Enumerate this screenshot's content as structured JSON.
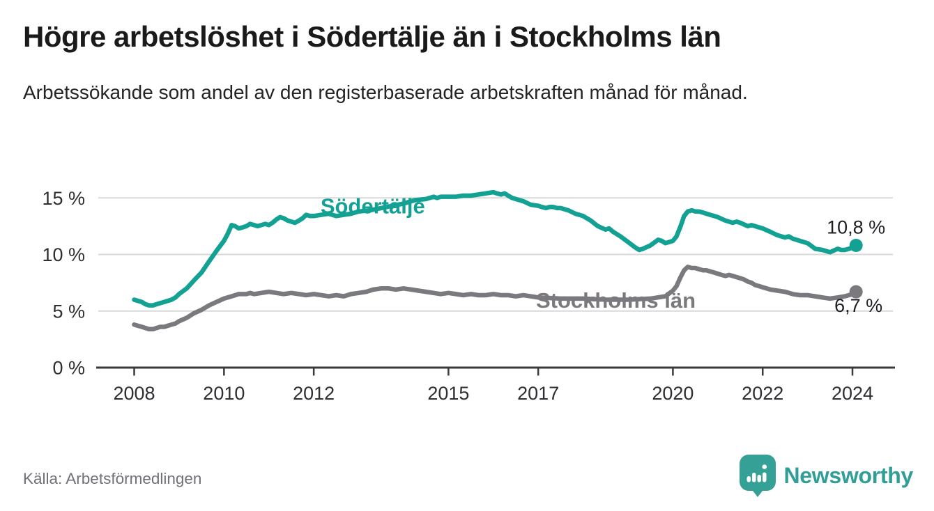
{
  "header": {
    "title": "Högre arbetslöshet i Södertälje än i Stockholms län",
    "subtitle": "Arbetssökande som andel av den registerbaserade arbetskraften månad för månad."
  },
  "chart_data": {
    "type": "line",
    "title": "Högre arbetslöshet i Södertälje än i Stockholms län",
    "subtitle": "Arbetssökande som andel av den registerbaserade arbetskraften månad för månad.",
    "x_axis": {
      "ticks": [
        2008,
        2010,
        2012,
        2015,
        2017,
        2020,
        2022,
        2024
      ],
      "range": [
        2008,
        2024.2
      ],
      "unit": "year"
    },
    "y_axis": {
      "ticks": [
        0,
        5,
        10,
        15
      ],
      "tick_suffix": " %",
      "range": [
        0,
        16
      ],
      "gridlines": [
        5,
        10,
        15
      ],
      "grid_color": "#d9d9d9",
      "axis_color": "#3a3a3a"
    },
    "legend_position": "inline-labels",
    "series": [
      {
        "name": "Södertälje",
        "color": "#12a192",
        "end_label": "10,8 %",
        "end_value": 10.8,
        "label_at": {
          "year": 2012.15,
          "value": 13.62
        },
        "points": [
          [
            2008.0,
            6.0
          ],
          [
            2008.08,
            5.9
          ],
          [
            2008.17,
            5.8
          ],
          [
            2008.25,
            5.6
          ],
          [
            2008.33,
            5.5
          ],
          [
            2008.42,
            5.5
          ],
          [
            2008.5,
            5.6
          ],
          [
            2008.58,
            5.7
          ],
          [
            2008.67,
            5.8
          ],
          [
            2008.75,
            5.9
          ],
          [
            2008.83,
            6.0
          ],
          [
            2008.92,
            6.2
          ],
          [
            2009.0,
            6.5
          ],
          [
            2009.17,
            7.0
          ],
          [
            2009.33,
            7.7
          ],
          [
            2009.5,
            8.4
          ],
          [
            2009.67,
            9.4
          ],
          [
            2009.83,
            10.3
          ],
          [
            2010.0,
            11.2
          ],
          [
            2010.08,
            11.8
          ],
          [
            2010.17,
            12.6
          ],
          [
            2010.25,
            12.5
          ],
          [
            2010.33,
            12.3
          ],
          [
            2010.42,
            12.4
          ],
          [
            2010.5,
            12.5
          ],
          [
            2010.58,
            12.7
          ],
          [
            2010.67,
            12.6
          ],
          [
            2010.75,
            12.5
          ],
          [
            2010.83,
            12.6
          ],
          [
            2010.92,
            12.7
          ],
          [
            2011.0,
            12.6
          ],
          [
            2011.08,
            12.8
          ],
          [
            2011.17,
            13.1
          ],
          [
            2011.25,
            13.3
          ],
          [
            2011.33,
            13.2
          ],
          [
            2011.42,
            13.0
          ],
          [
            2011.5,
            12.9
          ],
          [
            2011.58,
            12.8
          ],
          [
            2011.67,
            13.0
          ],
          [
            2011.75,
            13.2
          ],
          [
            2011.83,
            13.5
          ],
          [
            2011.92,
            13.4
          ],
          [
            2012.0,
            13.4
          ],
          [
            2012.17,
            13.5
          ],
          [
            2012.33,
            13.6
          ],
          [
            2012.5,
            13.4
          ],
          [
            2012.67,
            13.5
          ],
          [
            2012.83,
            13.6
          ],
          [
            2013.0,
            13.8
          ],
          [
            2013.25,
            13.9
          ],
          [
            2013.5,
            14.1
          ],
          [
            2013.75,
            14.3
          ],
          [
            2014.0,
            14.5
          ],
          [
            2014.25,
            14.8
          ],
          [
            2014.5,
            14.9
          ],
          [
            2014.58,
            15.0
          ],
          [
            2014.67,
            15.1
          ],
          [
            2014.75,
            15.0
          ],
          [
            2014.83,
            15.1
          ],
          [
            2014.92,
            15.1
          ],
          [
            2015.0,
            15.1
          ],
          [
            2015.17,
            15.1
          ],
          [
            2015.33,
            15.2
          ],
          [
            2015.5,
            15.2
          ],
          [
            2015.67,
            15.3
          ],
          [
            2015.83,
            15.4
          ],
          [
            2016.0,
            15.5
          ],
          [
            2016.08,
            15.4
          ],
          [
            2016.17,
            15.3
          ],
          [
            2016.25,
            15.4
          ],
          [
            2016.33,
            15.2
          ],
          [
            2016.42,
            15.0
          ],
          [
            2016.5,
            14.9
          ],
          [
            2016.67,
            14.7
          ],
          [
            2016.83,
            14.4
          ],
          [
            2017.0,
            14.3
          ],
          [
            2017.08,
            14.2
          ],
          [
            2017.17,
            14.1
          ],
          [
            2017.25,
            14.2
          ],
          [
            2017.33,
            14.2
          ],
          [
            2017.42,
            14.1
          ],
          [
            2017.5,
            14.1
          ],
          [
            2017.67,
            13.9
          ],
          [
            2017.83,
            13.6
          ],
          [
            2018.0,
            13.4
          ],
          [
            2018.17,
            13.0
          ],
          [
            2018.33,
            12.5
          ],
          [
            2018.5,
            12.2
          ],
          [
            2018.58,
            12.3
          ],
          [
            2018.67,
            12.0
          ],
          [
            2018.83,
            11.6
          ],
          [
            2019.0,
            11.1
          ],
          [
            2019.17,
            10.6
          ],
          [
            2019.25,
            10.4
          ],
          [
            2019.33,
            10.5
          ],
          [
            2019.5,
            10.8
          ],
          [
            2019.67,
            11.3
          ],
          [
            2019.75,
            11.2
          ],
          [
            2019.83,
            11.0
          ],
          [
            2019.92,
            11.1
          ],
          [
            2020.0,
            11.2
          ],
          [
            2020.08,
            11.6
          ],
          [
            2020.17,
            12.5
          ],
          [
            2020.25,
            13.4
          ],
          [
            2020.33,
            13.8
          ],
          [
            2020.42,
            13.9
          ],
          [
            2020.5,
            13.8
          ],
          [
            2020.58,
            13.8
          ],
          [
            2020.67,
            13.7
          ],
          [
            2020.75,
            13.6
          ],
          [
            2020.83,
            13.5
          ],
          [
            2020.92,
            13.4
          ],
          [
            2021.0,
            13.3
          ],
          [
            2021.17,
            13.0
          ],
          [
            2021.33,
            12.8
          ],
          [
            2021.42,
            12.9
          ],
          [
            2021.5,
            12.8
          ],
          [
            2021.67,
            12.5
          ],
          [
            2021.75,
            12.6
          ],
          [
            2021.83,
            12.5
          ],
          [
            2022.0,
            12.3
          ],
          [
            2022.17,
            12.0
          ],
          [
            2022.33,
            11.7
          ],
          [
            2022.5,
            11.5
          ],
          [
            2022.58,
            11.6
          ],
          [
            2022.67,
            11.4
          ],
          [
            2022.83,
            11.2
          ],
          [
            2023.0,
            11.0
          ],
          [
            2023.17,
            10.5
          ],
          [
            2023.33,
            10.4
          ],
          [
            2023.5,
            10.2
          ],
          [
            2023.67,
            10.5
          ],
          [
            2023.75,
            10.4
          ],
          [
            2023.83,
            10.4
          ],
          [
            2023.92,
            10.5
          ],
          [
            2024.0,
            10.6
          ],
          [
            2024.08,
            10.8
          ]
        ]
      },
      {
        "name": "Stockholms län",
        "color": "#7b797e",
        "end_label": "6,7 %",
        "end_value": 6.7,
        "label_at": {
          "year": 2016.95,
          "value": 5.3
        },
        "points": [
          [
            2008.0,
            3.8
          ],
          [
            2008.08,
            3.7
          ],
          [
            2008.17,
            3.6
          ],
          [
            2008.25,
            3.5
          ],
          [
            2008.33,
            3.4
          ],
          [
            2008.42,
            3.4
          ],
          [
            2008.5,
            3.5
          ],
          [
            2008.58,
            3.6
          ],
          [
            2008.67,
            3.6
          ],
          [
            2008.75,
            3.7
          ],
          [
            2008.83,
            3.8
          ],
          [
            2008.92,
            3.9
          ],
          [
            2009.0,
            4.1
          ],
          [
            2009.17,
            4.4
          ],
          [
            2009.33,
            4.8
          ],
          [
            2009.5,
            5.1
          ],
          [
            2009.67,
            5.5
          ],
          [
            2009.83,
            5.8
          ],
          [
            2010.0,
            6.1
          ],
          [
            2010.17,
            6.3
          ],
          [
            2010.33,
            6.5
          ],
          [
            2010.5,
            6.5
          ],
          [
            2010.58,
            6.6
          ],
          [
            2010.67,
            6.5
          ],
          [
            2010.83,
            6.6
          ],
          [
            2011.0,
            6.7
          ],
          [
            2011.17,
            6.6
          ],
          [
            2011.33,
            6.5
          ],
          [
            2011.5,
            6.6
          ],
          [
            2011.67,
            6.5
          ],
          [
            2011.83,
            6.4
          ],
          [
            2012.0,
            6.5
          ],
          [
            2012.17,
            6.4
          ],
          [
            2012.33,
            6.3
          ],
          [
            2012.5,
            6.4
          ],
          [
            2012.67,
            6.3
          ],
          [
            2012.83,
            6.5
          ],
          [
            2013.0,
            6.6
          ],
          [
            2013.17,
            6.7
          ],
          [
            2013.33,
            6.9
          ],
          [
            2013.5,
            7.0
          ],
          [
            2013.67,
            7.0
          ],
          [
            2013.83,
            6.9
          ],
          [
            2014.0,
            7.0
          ],
          [
            2014.17,
            6.9
          ],
          [
            2014.33,
            6.8
          ],
          [
            2014.5,
            6.7
          ],
          [
            2014.67,
            6.6
          ],
          [
            2014.83,
            6.5
          ],
          [
            2015.0,
            6.6
          ],
          [
            2015.17,
            6.5
          ],
          [
            2015.33,
            6.4
          ],
          [
            2015.5,
            6.5
          ],
          [
            2015.67,
            6.4
          ],
          [
            2015.83,
            6.4
          ],
          [
            2016.0,
            6.5
          ],
          [
            2016.17,
            6.4
          ],
          [
            2016.33,
            6.4
          ],
          [
            2016.5,
            6.3
          ],
          [
            2016.67,
            6.4
          ],
          [
            2016.83,
            6.3
          ],
          [
            2017.0,
            6.2
          ],
          [
            2017.5,
            6.1
          ],
          [
            2018.0,
            6.1
          ],
          [
            2018.5,
            6.0
          ],
          [
            2019.0,
            6.0
          ],
          [
            2019.5,
            6.1
          ],
          [
            2019.83,
            6.3
          ],
          [
            2020.0,
            6.8
          ],
          [
            2020.08,
            7.2
          ],
          [
            2020.17,
            8.0
          ],
          [
            2020.25,
            8.6
          ],
          [
            2020.33,
            8.9
          ],
          [
            2020.42,
            8.8
          ],
          [
            2020.5,
            8.8
          ],
          [
            2020.58,
            8.7
          ],
          [
            2020.67,
            8.6
          ],
          [
            2020.75,
            8.6
          ],
          [
            2020.83,
            8.5
          ],
          [
            2020.92,
            8.4
          ],
          [
            2021.0,
            8.3
          ],
          [
            2021.08,
            8.2
          ],
          [
            2021.17,
            8.1
          ],
          [
            2021.25,
            8.2
          ],
          [
            2021.33,
            8.1
          ],
          [
            2021.5,
            7.9
          ],
          [
            2021.58,
            7.8
          ],
          [
            2021.67,
            7.6
          ],
          [
            2021.75,
            7.5
          ],
          [
            2021.83,
            7.3
          ],
          [
            2021.92,
            7.2
          ],
          [
            2022.0,
            7.1
          ],
          [
            2022.17,
            6.9
          ],
          [
            2022.33,
            6.8
          ],
          [
            2022.5,
            6.7
          ],
          [
            2022.67,
            6.5
          ],
          [
            2022.83,
            6.4
          ],
          [
            2023.0,
            6.4
          ],
          [
            2023.17,
            6.3
          ],
          [
            2023.33,
            6.2
          ],
          [
            2023.5,
            6.1
          ],
          [
            2023.67,
            6.2
          ],
          [
            2023.83,
            6.3
          ],
          [
            2023.92,
            6.4
          ],
          [
            2024.0,
            6.5
          ],
          [
            2024.08,
            6.7
          ]
        ]
      }
    ]
  },
  "footer": {
    "source": "Källa: Arbetsförmedlingen",
    "logo_text": "Newsworthy"
  },
  "colors": {
    "accent_teal": "#12a192",
    "line_gray": "#7b797e",
    "grid": "#d9d9d9",
    "axis": "#3a3a3a",
    "logo_teal": "#2f9e96"
  }
}
